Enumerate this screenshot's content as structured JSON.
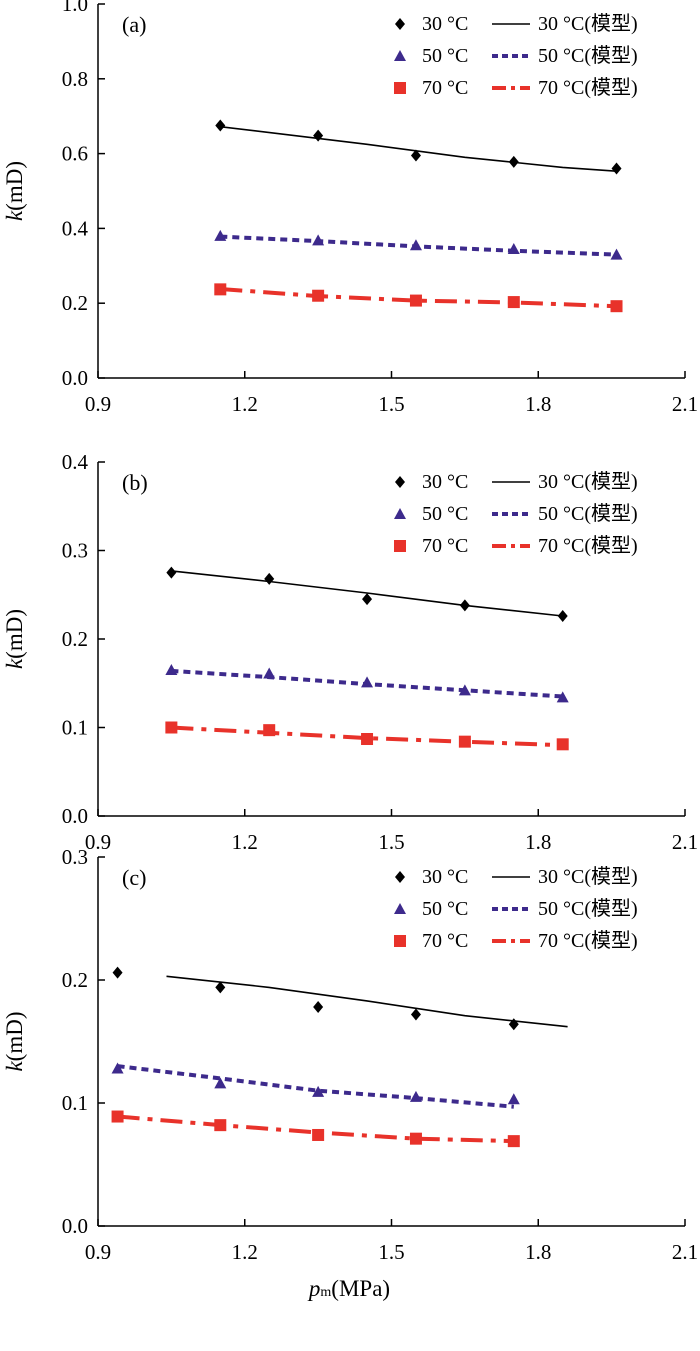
{
  "chart_data": [
    {
      "panel_label": "(a)",
      "type": "scatter",
      "ylabel_italic": "k",
      "ylabel_unit": "(mD)",
      "xlim": [
        0.9,
        2.1
      ],
      "ylim": [
        0.0,
        1.0
      ],
      "xticks": [
        "0.9",
        "1.2",
        "1.5",
        "1.8",
        "2.1"
      ],
      "yticks": [
        "0.0",
        "0.2",
        "0.4",
        "0.6",
        "0.8",
        "1.0"
      ],
      "legend_position": "top-right",
      "grid": false,
      "series": [
        {
          "name": "30 °C",
          "marker": "diamond",
          "color": "#000000",
          "x": [
            1.15,
            1.35,
            1.55,
            1.75,
            1.96
          ],
          "y": [
            0.675,
            0.648,
            0.595,
            0.578,
            0.56
          ]
        },
        {
          "name": "50 °C",
          "marker": "triangle",
          "color": "#3d2a8c",
          "x": [
            1.15,
            1.35,
            1.55,
            1.75,
            1.96
          ],
          "y": [
            0.38,
            0.368,
            0.355,
            0.345,
            0.33
          ]
        },
        {
          "name": "70 °C",
          "marker": "square",
          "color": "#e8322a",
          "x": [
            1.15,
            1.35,
            1.55,
            1.75,
            1.96
          ],
          "y": [
            0.237,
            0.22,
            0.207,
            0.203,
            0.192
          ]
        }
      ],
      "model_series": [
        {
          "name": "30 °C(模型)",
          "style": "solid",
          "color": "#000000",
          "x": [
            1.15,
            1.45,
            1.65,
            1.85,
            1.96
          ],
          "y": [
            0.672,
            0.625,
            0.59,
            0.563,
            0.553
          ]
        },
        {
          "name": "50 °C(模型)",
          "style": "dotted",
          "color": "#3d2a8c",
          "x": [
            1.15,
            1.35,
            1.55,
            1.75,
            1.96
          ],
          "y": [
            0.378,
            0.366,
            0.352,
            0.34,
            0.33
          ]
        },
        {
          "name": "70 °C(模型)",
          "style": "dashdot",
          "color": "#e8322a",
          "x": [
            1.15,
            1.35,
            1.55,
            1.75,
            1.96
          ],
          "y": [
            0.238,
            0.219,
            0.207,
            0.202,
            0.192
          ]
        }
      ]
    },
    {
      "panel_label": "(b)",
      "type": "scatter",
      "ylabel_italic": "k",
      "ylabel_unit": "(mD)",
      "xlim": [
        0.9,
        2.1
      ],
      "ylim": [
        0.0,
        0.4
      ],
      "xticks": [
        "0.9",
        "1.2",
        "1.5",
        "1.8",
        "2.1"
      ],
      "yticks": [
        "0.0",
        "0.1",
        "0.2",
        "0.3",
        "0.4"
      ],
      "legend_position": "top-right",
      "grid": false,
      "series": [
        {
          "name": "30 °C",
          "marker": "diamond",
          "color": "#000000",
          "x": [
            1.05,
            1.25,
            1.45,
            1.65,
            1.85
          ],
          "y": [
            0.275,
            0.268,
            0.245,
            0.238,
            0.226
          ]
        },
        {
          "name": "50 °C",
          "marker": "triangle",
          "color": "#3d2a8c",
          "x": [
            1.05,
            1.25,
            1.45,
            1.65,
            1.85
          ],
          "y": [
            0.165,
            0.161,
            0.151,
            0.142,
            0.134
          ]
        },
        {
          "name": "70 °C",
          "marker": "square",
          "color": "#e8322a",
          "x": [
            1.05,
            1.25,
            1.45,
            1.65,
            1.85
          ],
          "y": [
            0.1,
            0.097,
            0.087,
            0.084,
            0.081
          ]
        }
      ],
      "model_series": [
        {
          "name": "30 °C(模型)",
          "style": "solid",
          "color": "#000000",
          "x": [
            1.05,
            1.25,
            1.45,
            1.65,
            1.85
          ],
          "y": [
            0.277,
            0.265,
            0.252,
            0.238,
            0.226
          ]
        },
        {
          "name": "50 °C(模型)",
          "style": "dotted",
          "color": "#3d2a8c",
          "x": [
            1.05,
            1.25,
            1.45,
            1.65,
            1.85
          ],
          "y": [
            0.164,
            0.157,
            0.149,
            0.142,
            0.135
          ]
        },
        {
          "name": "70 °C(模型)",
          "style": "dashdot",
          "color": "#e8322a",
          "x": [
            1.05,
            1.25,
            1.45,
            1.65,
            1.85
          ],
          "y": [
            0.1,
            0.094,
            0.088,
            0.084,
            0.08
          ]
        }
      ]
    },
    {
      "panel_label": "(c)",
      "type": "scatter",
      "ylabel_italic": "k",
      "ylabel_unit": "(mD)",
      "xlabel_italic": "p",
      "xlabel_sub": "m",
      "xlabel_unit": "(MPa)",
      "xlim": [
        0.9,
        2.1
      ],
      "ylim": [
        0.0,
        0.3
      ],
      "xticks": [
        "0.9",
        "1.2",
        "1.5",
        "1.8",
        "2.1"
      ],
      "yticks": [
        "0.0",
        "0.1",
        "0.2",
        "0.3"
      ],
      "legend_position": "top-right",
      "grid": false,
      "series": [
        {
          "name": "30 °C",
          "marker": "diamond",
          "color": "#000000",
          "x": [
            0.94,
            1.15,
            1.35,
            1.55,
            1.75
          ],
          "y": [
            0.206,
            0.194,
            0.178,
            0.172,
            0.164
          ]
        },
        {
          "name": "50 °C",
          "marker": "triangle",
          "color": "#3d2a8c",
          "x": [
            0.94,
            1.15,
            1.35,
            1.55,
            1.75
          ],
          "y": [
            0.128,
            0.116,
            0.109,
            0.105,
            0.103
          ]
        },
        {
          "name": "70 °C",
          "marker": "square",
          "color": "#e8322a",
          "x": [
            0.94,
            1.15,
            1.35,
            1.55,
            1.75
          ],
          "y": [
            0.089,
            0.082,
            0.074,
            0.071,
            0.069
          ]
        }
      ],
      "model_series": [
        {
          "name": "30 °C(模型)",
          "style": "solid",
          "color": "#000000",
          "x": [
            1.04,
            1.25,
            1.45,
            1.65,
            1.86
          ],
          "y": [
            0.203,
            0.194,
            0.183,
            0.171,
            0.162
          ]
        },
        {
          "name": "50 °C(模型)",
          "style": "dotted",
          "color": "#3d2a8c",
          "x": [
            0.94,
            1.15,
            1.35,
            1.55,
            1.75
          ],
          "y": [
            0.13,
            0.12,
            0.11,
            0.104,
            0.097
          ]
        },
        {
          "name": "70 °C(模型)",
          "style": "dashdot",
          "color": "#e8322a",
          "x": [
            0.94,
            1.15,
            1.35,
            1.55,
            1.75
          ],
          "y": [
            0.089,
            0.082,
            0.076,
            0.071,
            0.069
          ]
        }
      ]
    }
  ]
}
